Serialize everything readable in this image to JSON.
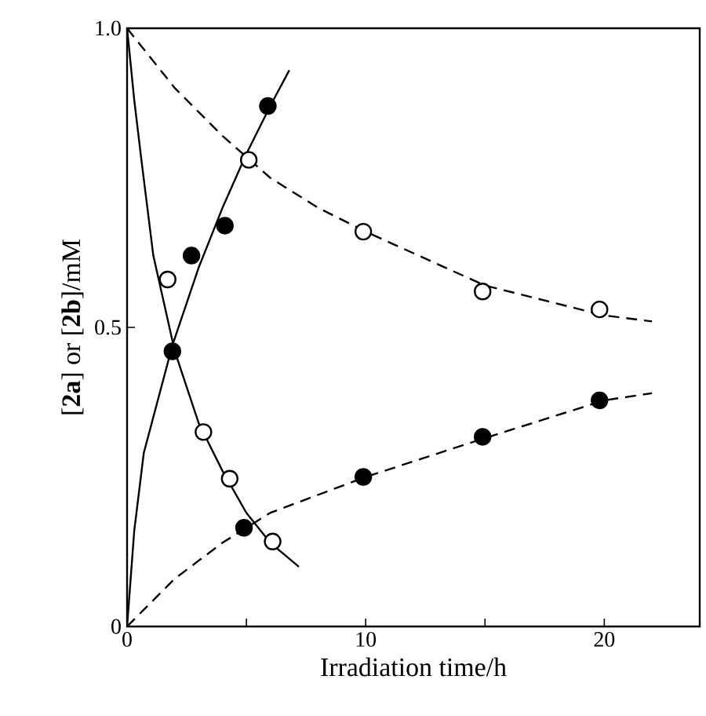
{
  "chart_data": {
    "type": "scatter",
    "xlabel": "Irradiation time/h",
    "ylabel": "[**2a**] or [**2b**]/mM",
    "xlim": [
      0,
      24
    ],
    "ylim": [
      0,
      1
    ],
    "xticks": [
      {
        "value": 0,
        "label": "0"
      },
      {
        "value": 5,
        "label": null
      },
      {
        "value": 10,
        "label": "10"
      },
      {
        "value": 15,
        "label": null
      },
      {
        "value": 20,
        "label": "20"
      }
    ],
    "yticks": [
      {
        "value": 0,
        "label": "0"
      },
      {
        "value": 0.5,
        "label": "0.5"
      },
      {
        "value": 1,
        "label": "1.0"
      }
    ],
    "series": [
      {
        "type": "line",
        "line_style": "solid",
        "color": "#000000",
        "x": [
          0,
          0.3,
          0.6,
          1.1,
          2,
          3,
          4,
          5,
          6,
          7.2
        ],
        "values": [
          1,
          0.88,
          0.78,
          0.62,
          0.46,
          0.34,
          0.26,
          0.19,
          0.14,
          0.1
        ]
      },
      {
        "type": "line",
        "line_style": "solid",
        "color": "#000000",
        "x": [
          0,
          0.3,
          0.7,
          1.9,
          3,
          4,
          5,
          6,
          6.8
        ],
        "values": [
          0,
          0.16,
          0.29,
          0.47,
          0.6,
          0.7,
          0.79,
          0.87,
          0.93
        ]
      },
      {
        "type": "line",
        "line_style": "dashed",
        "color": "#000000",
        "x": [
          0,
          2,
          4,
          6,
          8,
          10,
          15,
          20,
          22
        ],
        "values": [
          1,
          0.9,
          0.82,
          0.75,
          0.7,
          0.66,
          0.57,
          0.52,
          0.51
        ]
      },
      {
        "type": "line",
        "line_style": "dashed",
        "color": "#000000",
        "x": [
          0,
          2,
          4,
          6,
          10,
          15,
          20,
          22
        ],
        "values": [
          0,
          0.08,
          0.14,
          0.19,
          0.25,
          0.315,
          0.378,
          0.39
        ]
      },
      {
        "marker": "circle",
        "color": "#ffffff",
        "x": [
          1.7,
          3.2,
          4.3,
          6.1
        ],
        "values": [
          0.58,
          0.325,
          0.247,
          0.142
        ]
      },
      {
        "marker": "circle",
        "color": "#000000",
        "x": [
          1.9,
          2.7,
          4.1,
          5.9
        ],
        "values": [
          0.46,
          0.62,
          0.67,
          0.87
        ]
      },
      {
        "marker": "circle",
        "color": "#ffffff",
        "x": [
          5.1,
          9.9,
          14.9,
          19.8
        ],
        "values": [
          0.78,
          0.66,
          0.56,
          0.53
        ]
      },
      {
        "marker": "circle",
        "color": "#000000",
        "x": [
          4.9,
          9.9,
          14.9,
          19.8
        ],
        "values": [
          0.165,
          0.25,
          0.317,
          0.378
        ]
      }
    ]
  }
}
